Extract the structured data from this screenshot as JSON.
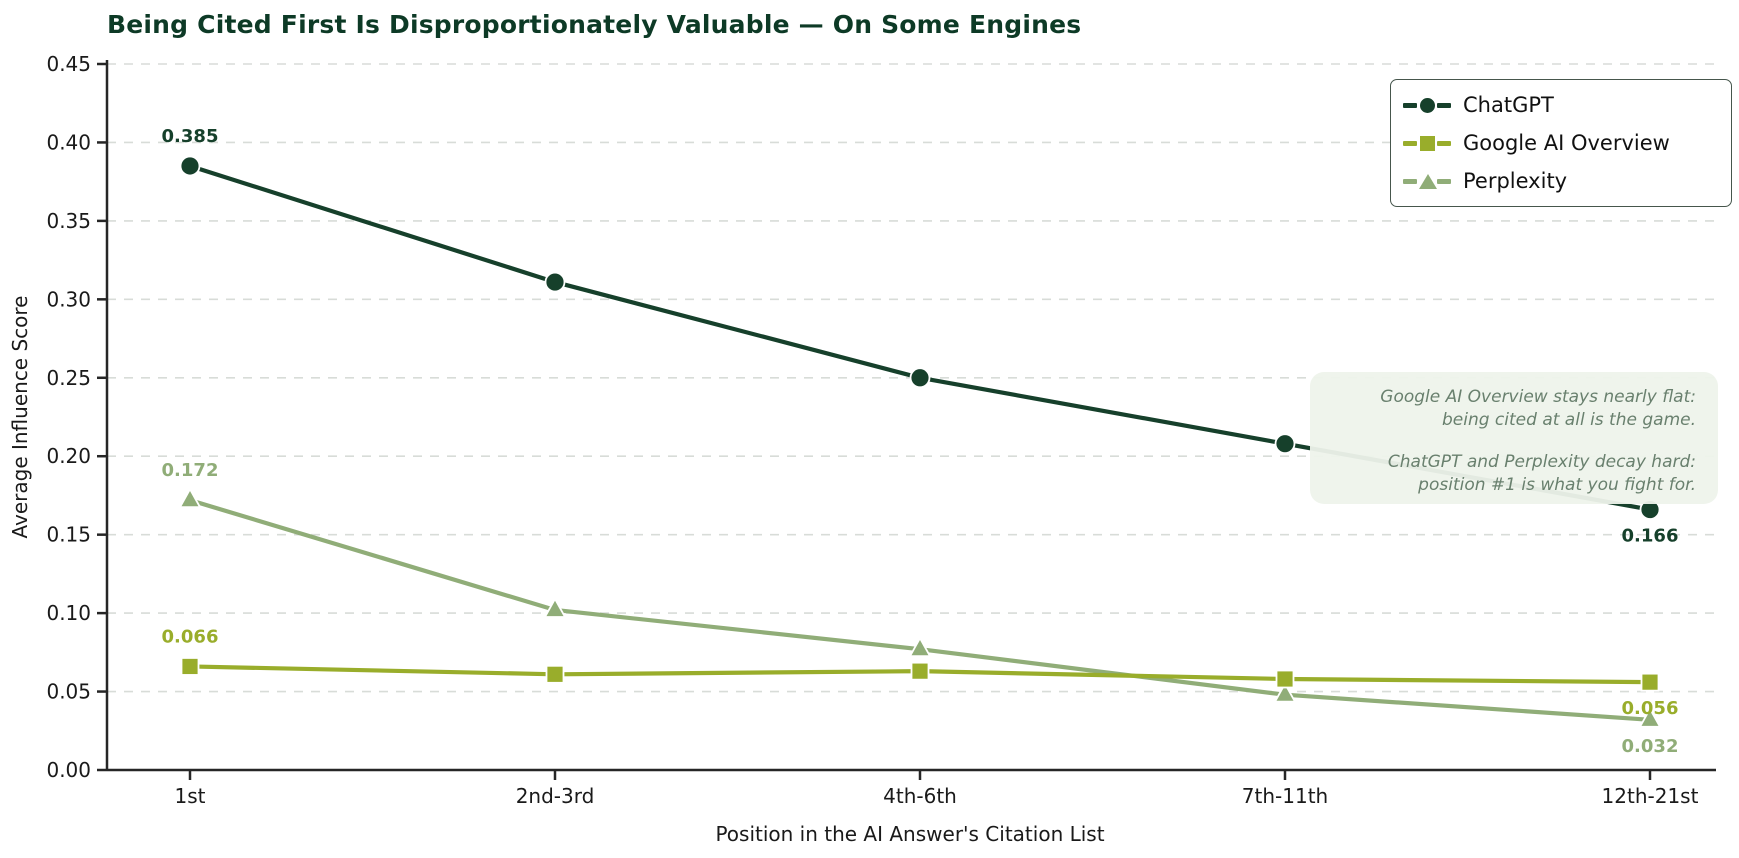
{
  "chart_data": {
    "type": "line",
    "title": "Being Cited First Is Disproportionately Valuable — On Some Engines",
    "xlabel": "Position in the AI Answer's Citation List",
    "ylabel": "Average Influence Score",
    "categories": [
      "1st",
      "2nd-3rd",
      "4th-6th",
      "7th-11th",
      "12th-21st"
    ],
    "ylim": [
      0,
      0.45
    ],
    "ytick_step": 0.05,
    "grid": "horizontal-dashed",
    "legend_position": "upper-right",
    "series": [
      {
        "name": "ChatGPT",
        "color": "#16402b",
        "marker": "circle",
        "values": [
          0.385,
          0.311,
          0.25,
          0.208,
          0.166
        ],
        "point_labels": [
          {
            "index": 0,
            "text": "0.385",
            "position": "above"
          },
          {
            "index": 4,
            "text": "0.166",
            "position": "below"
          }
        ]
      },
      {
        "name": "Google AI Overview",
        "color": "#99ad2b",
        "marker": "square",
        "values": [
          0.066,
          0.061,
          0.063,
          0.058,
          0.056
        ],
        "point_labels": [
          {
            "index": 0,
            "text": "0.066",
            "position": "above"
          },
          {
            "index": 4,
            "text": "0.056",
            "position": "below"
          }
        ]
      },
      {
        "name": "Perplexity",
        "color": "#90ad78",
        "marker": "triangle",
        "values": [
          0.172,
          0.102,
          0.077,
          0.048,
          0.032
        ],
        "point_labels": [
          {
            "index": 0,
            "text": "0.172",
            "position": "above"
          },
          {
            "index": 4,
            "text": "0.032",
            "position": "below"
          }
        ]
      }
    ],
    "annotation": {
      "para1": "Google AI Overview stays nearly flat:\nbeing cited at all is the game.",
      "para2": "ChatGPT and Perplexity decay hard:\nposition #1 is what you fight for.",
      "text_color": "#69806e",
      "bg_color": "#eef3eb"
    }
  },
  "colors": {
    "title": "#0d3a26",
    "axis": "#262626",
    "grid": "#d8dcd8",
    "tick_label": "#1a1a1a"
  }
}
